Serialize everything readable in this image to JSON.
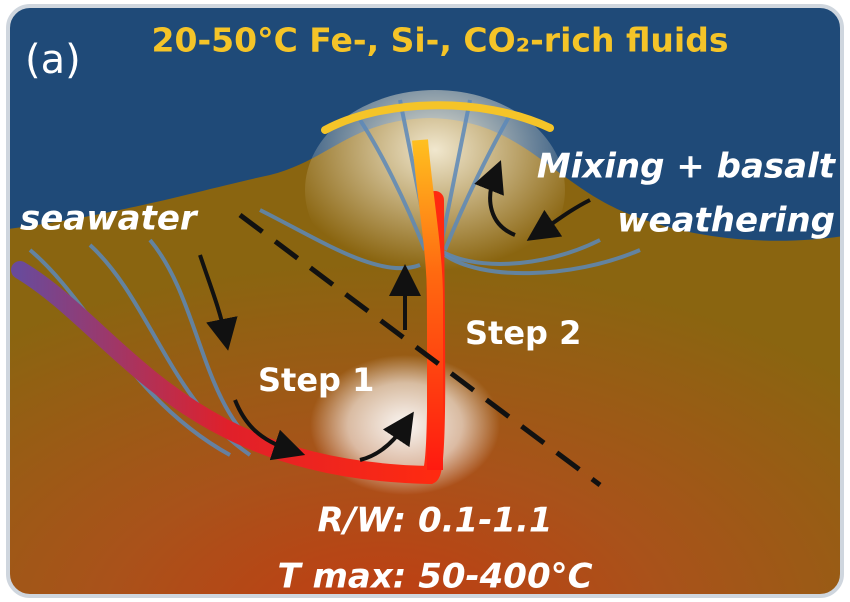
{
  "panel_label": "(a)",
  "title": "20-50°C Fe-, Si-, CO₂-rich fluids",
  "labels": {
    "seawater": "seawater",
    "mixing_line1": "Mixing + basalt",
    "mixing_line2": "weathering",
    "step1": "Step 1",
    "step2": "Step 2",
    "rw": "R/W: 0.1-1.1",
    "tmax": "T max: 50-400°C"
  }
}
